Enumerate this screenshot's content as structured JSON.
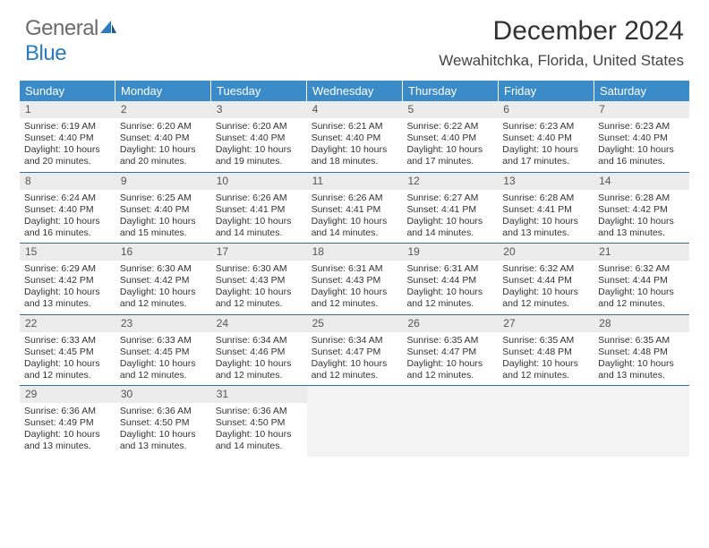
{
  "brand": {
    "general": "General",
    "blue": "Blue"
  },
  "title": "December 2024",
  "location": "Wewahitchka, Florida, United States",
  "colors": {
    "header_bg": "#3b8bc9",
    "header_text": "#ffffff",
    "daynum_bg": "#ececec",
    "daynum_text": "#555555",
    "row_border": "#2f6fa3",
    "brand_gray": "#6b6b6b",
    "brand_blue": "#2b7bbf",
    "body_text": "#333333"
  },
  "day_names": [
    "Sunday",
    "Monday",
    "Tuesday",
    "Wednesday",
    "Thursday",
    "Friday",
    "Saturday"
  ],
  "weeks": [
    [
      {
        "n": "1",
        "sr": "6:19 AM",
        "ss": "4:40 PM",
        "dl": "10 hours and 20 minutes."
      },
      {
        "n": "2",
        "sr": "6:20 AM",
        "ss": "4:40 PM",
        "dl": "10 hours and 20 minutes."
      },
      {
        "n": "3",
        "sr": "6:20 AM",
        "ss": "4:40 PM",
        "dl": "10 hours and 19 minutes."
      },
      {
        "n": "4",
        "sr": "6:21 AM",
        "ss": "4:40 PM",
        "dl": "10 hours and 18 minutes."
      },
      {
        "n": "5",
        "sr": "6:22 AM",
        "ss": "4:40 PM",
        "dl": "10 hours and 17 minutes."
      },
      {
        "n": "6",
        "sr": "6:23 AM",
        "ss": "4:40 PM",
        "dl": "10 hours and 17 minutes."
      },
      {
        "n": "7",
        "sr": "6:23 AM",
        "ss": "4:40 PM",
        "dl": "10 hours and 16 minutes."
      }
    ],
    [
      {
        "n": "8",
        "sr": "6:24 AM",
        "ss": "4:40 PM",
        "dl": "10 hours and 16 minutes."
      },
      {
        "n": "9",
        "sr": "6:25 AM",
        "ss": "4:40 PM",
        "dl": "10 hours and 15 minutes."
      },
      {
        "n": "10",
        "sr": "6:26 AM",
        "ss": "4:41 PM",
        "dl": "10 hours and 14 minutes."
      },
      {
        "n": "11",
        "sr": "6:26 AM",
        "ss": "4:41 PM",
        "dl": "10 hours and 14 minutes."
      },
      {
        "n": "12",
        "sr": "6:27 AM",
        "ss": "4:41 PM",
        "dl": "10 hours and 14 minutes."
      },
      {
        "n": "13",
        "sr": "6:28 AM",
        "ss": "4:41 PM",
        "dl": "10 hours and 13 minutes."
      },
      {
        "n": "14",
        "sr": "6:28 AM",
        "ss": "4:42 PM",
        "dl": "10 hours and 13 minutes."
      }
    ],
    [
      {
        "n": "15",
        "sr": "6:29 AM",
        "ss": "4:42 PM",
        "dl": "10 hours and 13 minutes."
      },
      {
        "n": "16",
        "sr": "6:30 AM",
        "ss": "4:42 PM",
        "dl": "10 hours and 12 minutes."
      },
      {
        "n": "17",
        "sr": "6:30 AM",
        "ss": "4:43 PM",
        "dl": "10 hours and 12 minutes."
      },
      {
        "n": "18",
        "sr": "6:31 AM",
        "ss": "4:43 PM",
        "dl": "10 hours and 12 minutes."
      },
      {
        "n": "19",
        "sr": "6:31 AM",
        "ss": "4:44 PM",
        "dl": "10 hours and 12 minutes."
      },
      {
        "n": "20",
        "sr": "6:32 AM",
        "ss": "4:44 PM",
        "dl": "10 hours and 12 minutes."
      },
      {
        "n": "21",
        "sr": "6:32 AM",
        "ss": "4:44 PM",
        "dl": "10 hours and 12 minutes."
      }
    ],
    [
      {
        "n": "22",
        "sr": "6:33 AM",
        "ss": "4:45 PM",
        "dl": "10 hours and 12 minutes."
      },
      {
        "n": "23",
        "sr": "6:33 AM",
        "ss": "4:45 PM",
        "dl": "10 hours and 12 minutes."
      },
      {
        "n": "24",
        "sr": "6:34 AM",
        "ss": "4:46 PM",
        "dl": "10 hours and 12 minutes."
      },
      {
        "n": "25",
        "sr": "6:34 AM",
        "ss": "4:47 PM",
        "dl": "10 hours and 12 minutes."
      },
      {
        "n": "26",
        "sr": "6:35 AM",
        "ss": "4:47 PM",
        "dl": "10 hours and 12 minutes."
      },
      {
        "n": "27",
        "sr": "6:35 AM",
        "ss": "4:48 PM",
        "dl": "10 hours and 12 minutes."
      },
      {
        "n": "28",
        "sr": "6:35 AM",
        "ss": "4:48 PM",
        "dl": "10 hours and 13 minutes."
      }
    ],
    [
      {
        "n": "29",
        "sr": "6:36 AM",
        "ss": "4:49 PM",
        "dl": "10 hours and 13 minutes."
      },
      {
        "n": "30",
        "sr": "6:36 AM",
        "ss": "4:50 PM",
        "dl": "10 hours and 13 minutes."
      },
      {
        "n": "31",
        "sr": "6:36 AM",
        "ss": "4:50 PM",
        "dl": "10 hours and 14 minutes."
      },
      null,
      null,
      null,
      null
    ]
  ],
  "labels": {
    "sunrise": "Sunrise: ",
    "sunset": "Sunset: ",
    "daylight": "Daylight: "
  }
}
